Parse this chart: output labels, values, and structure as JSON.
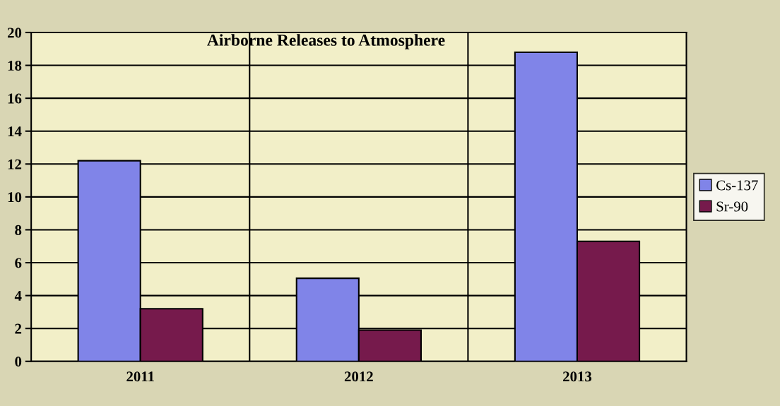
{
  "chart_data": {
    "type": "bar",
    "title": "Airborne Releases to Atmosphere",
    "categories": [
      "2011",
      "2012",
      "2013"
    ],
    "series": [
      {
        "name": "Cs-137",
        "color": "#8084e8",
        "values": [
          12.2,
          5.05,
          18.8
        ]
      },
      {
        "name": "Sr-90",
        "color": "#761a4c",
        "values": [
          3.2,
          1.9,
          7.3
        ]
      }
    ],
    "ylim": [
      0,
      20
    ],
    "yticks": [
      0,
      2,
      4,
      6,
      8,
      10,
      12,
      14,
      16,
      18,
      20
    ],
    "grid": true,
    "legend": "right"
  }
}
